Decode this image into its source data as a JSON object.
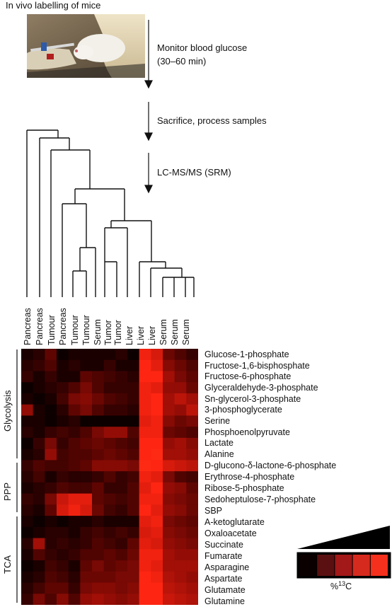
{
  "title": "In vivo labelling of mice",
  "steps": [
    {
      "label": "Monitor blood glucose",
      "sublabel": "(30–60 min)"
    },
    {
      "label": "Sacrifice, process samples",
      "sublabel": ""
    },
    {
      "label": "LC-MS/MS (SRM)",
      "sublabel": ""
    }
  ],
  "columns": [
    "Pancreas",
    "Pancreas",
    "Tumour",
    "Pancreas",
    "Tumour",
    "Tumour",
    "Serum",
    "Tumor",
    "Tumor",
    "Liver",
    "Liver",
    "Liver",
    "Serum",
    "Serum",
    "Serum"
  ],
  "rows": [
    "Glucose-1-phosphate",
    "Fructose-1,6-bisphosphate",
    "Fructose-6-phosphate",
    "Glyceraldehyde-3-phosphate",
    "Sn-glycerol-3-phosphate",
    "3-phosphoglycerate",
    "Serine",
    "Phosphoenolpyruvate",
    "Lactate",
    "Alanine",
    "D-glucono-δ-lactone-6-phosphate",
    "Erythrose-4-phosphate",
    "Ribose-5-phosphate",
    "Sedoheptulose-7-phosphate",
    "SBP",
    "A-ketoglutarate",
    "Oxaloacetate",
    "Succinate",
    "Fumarate",
    "Asparagine",
    "Aspartate",
    "Glutamate",
    "Glutamine"
  ],
  "groups": [
    {
      "label": "Glycolysis",
      "start": 0,
      "end": 9
    },
    {
      "label": "PPP",
      "start": 10,
      "end": 14
    },
    {
      "label": "TCA",
      "start": 15,
      "end": 22
    }
  ],
  "heatmap_values": [
    [
      0.1,
      0.15,
      0.35,
      0.05,
      0.1,
      0.1,
      0.1,
      0.1,
      0.15,
      0.05,
      0.9,
      0.8,
      0.4,
      0.3,
      0.2
    ],
    [
      0.15,
      0.2,
      0.3,
      0.1,
      0.15,
      0.1,
      0.1,
      0.2,
      0.1,
      0.1,
      0.95,
      0.85,
      0.5,
      0.4,
      0.3
    ],
    [
      0.2,
      0.1,
      0.2,
      0.1,
      0.1,
      0.35,
      0.3,
      0.25,
      0.2,
      0.15,
      0.95,
      0.95,
      0.6,
      0.45,
      0.35
    ],
    [
      0.05,
      0.1,
      0.15,
      0.2,
      0.3,
      0.45,
      0.3,
      0.2,
      0.2,
      0.2,
      0.9,
      0.85,
      0.55,
      0.55,
      0.4
    ],
    [
      0.1,
      0.05,
      0.1,
      0.25,
      0.45,
      0.5,
      0.4,
      0.3,
      0.25,
      0.2,
      0.9,
      0.95,
      0.6,
      0.7,
      0.6
    ],
    [
      0.55,
      0.1,
      0.05,
      0.15,
      0.35,
      0.45,
      0.3,
      0.2,
      0.2,
      0.15,
      0.9,
      0.95,
      0.6,
      0.55,
      0.7
    ],
    [
      0.1,
      0.1,
      0.05,
      0.1,
      0.15,
      0.05,
      0.05,
      0.05,
      0.05,
      0.05,
      0.85,
      0.9,
      0.5,
      0.4,
      0.45
    ],
    [
      0.15,
      0.1,
      0.2,
      0.25,
      0.2,
      0.3,
      0.45,
      0.55,
      0.55,
      0.3,
      0.9,
      0.9,
      0.4,
      0.35,
      0.3
    ],
    [
      0.05,
      0.2,
      0.45,
      0.2,
      0.3,
      0.35,
      0.4,
      0.35,
      0.3,
      0.25,
      0.95,
      0.95,
      0.55,
      0.6,
      0.5
    ],
    [
      0.1,
      0.15,
      0.55,
      0.25,
      0.3,
      0.3,
      0.35,
      0.4,
      0.35,
      0.3,
      0.95,
      1.0,
      0.6,
      0.6,
      0.55
    ],
    [
      0.2,
      0.3,
      0.25,
      0.25,
      0.3,
      0.35,
      0.5,
      0.5,
      0.5,
      0.45,
      1.0,
      0.95,
      0.8,
      0.75,
      0.7
    ],
    [
      0.15,
      0.25,
      0.1,
      0.2,
      0.15,
      0.15,
      0.2,
      0.3,
      0.2,
      0.25,
      0.9,
      0.85,
      0.45,
      0.3,
      0.25
    ],
    [
      0.1,
      0.15,
      0.2,
      0.3,
      0.25,
      0.25,
      0.35,
      0.2,
      0.2,
      0.3,
      0.85,
      0.95,
      0.55,
      0.5,
      0.35
    ],
    [
      0.2,
      0.15,
      0.45,
      0.75,
      0.85,
      0.85,
      0.35,
      0.3,
      0.25,
      0.3,
      0.9,
      0.9,
      0.5,
      0.45,
      0.4
    ],
    [
      0.15,
      0.1,
      0.35,
      0.8,
      0.9,
      0.8,
      0.4,
      0.25,
      0.2,
      0.3,
      0.95,
      0.85,
      0.55,
      0.5,
      0.4
    ],
    [
      0.1,
      0.05,
      0.1,
      0.05,
      0.1,
      0.1,
      0.15,
      0.1,
      0.1,
      0.1,
      0.85,
      0.9,
      0.45,
      0.4,
      0.35
    ],
    [
      0.05,
      0.1,
      0.15,
      0.15,
      0.1,
      0.2,
      0.25,
      0.2,
      0.25,
      0.2,
      0.8,
      0.85,
      0.5,
      0.45,
      0.4
    ],
    [
      0.15,
      0.6,
      0.15,
      0.2,
      0.15,
      0.2,
      0.3,
      0.25,
      0.2,
      0.35,
      0.85,
      0.8,
      0.55,
      0.5,
      0.45
    ],
    [
      0.1,
      0.3,
      0.2,
      0.15,
      0.2,
      0.3,
      0.3,
      0.35,
      0.3,
      0.4,
      0.9,
      0.9,
      0.6,
      0.55,
      0.55
    ],
    [
      0.05,
      0.1,
      0.25,
      0.2,
      0.1,
      0.35,
      0.45,
      0.35,
      0.4,
      0.45,
      0.9,
      0.85,
      0.6,
      0.6,
      0.6
    ],
    [
      0.1,
      0.15,
      0.3,
      0.25,
      0.15,
      0.4,
      0.4,
      0.4,
      0.45,
      0.45,
      0.95,
      0.9,
      0.65,
      0.6,
      0.55
    ],
    [
      0.15,
      0.25,
      0.35,
      0.35,
      0.2,
      0.45,
      0.5,
      0.5,
      0.45,
      0.5,
      0.95,
      0.95,
      0.7,
      0.65,
      0.6
    ],
    [
      0.2,
      0.45,
      0.3,
      0.5,
      0.3,
      0.55,
      0.6,
      0.55,
      0.5,
      0.55,
      0.95,
      0.95,
      0.75,
      0.7,
      0.65
    ]
  ],
  "legend": {
    "unit": "%",
    "unit_superscript": "13",
    "unit_suffix": "C",
    "swatches": [
      "#0b0000",
      "#5a1010",
      "#a31818",
      "#d72a1e",
      "#f5301c"
    ]
  },
  "colors": {
    "low": "#000000",
    "high": "#ff2a14"
  },
  "icons": {
    "photo": "mouse-injection-photo",
    "arrow": "down-arrow-icon"
  }
}
